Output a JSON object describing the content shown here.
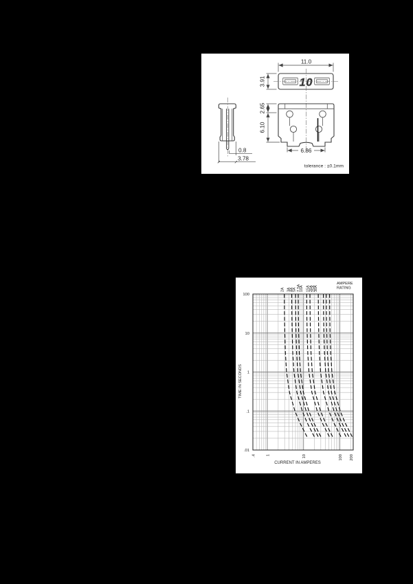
{
  "page": {
    "background": "#000000",
    "panel_background": "#ffffff"
  },
  "drawing_panel": {
    "marking": "10",
    "dim_width_top": "11.0",
    "dim_height_top": "3.91",
    "dim_upper_height": "2.65",
    "dim_lower_height": "6.10",
    "dim_terminal_span": "6.86",
    "dim_blade_thickness": "0.8",
    "dim_side_width": "3.78",
    "tolerance_note": "tolerance : ±0.1mm"
  },
  "chart_data": {
    "type": "line",
    "title": "",
    "xlabel": "CURRENT IN AMPERES",
    "ylabel": "TIME IN SECONDS",
    "legend_title_lines": [
      "AMPERE",
      "RATING"
    ],
    "x_scale": "log",
    "y_scale": "log",
    "xlim": [
      0.4,
      235
    ],
    "ylim": [
      0.01,
      100
    ],
    "grid": true,
    "colors": {
      "grid_minor": "#ababab",
      "grid_major": "#7d7d7d",
      "frame": "#1d1d1d",
      "curve": "#0c0c0c"
    },
    "x_ticks": [
      {
        "v": 0.4,
        "label": ".4"
      },
      {
        "v": 1,
        "label": "1"
      },
      {
        "v": 10,
        "label": "10"
      },
      {
        "v": 100,
        "label": "100"
      },
      {
        "v": 200,
        "label": "200"
      }
    ],
    "y_ticks": [
      {
        "v": 100,
        "label": "100"
      },
      {
        "v": 10,
        "label": "10"
      },
      {
        "v": 1,
        "label": "1"
      },
      {
        "v": 0.1,
        "label": ".1"
      },
      {
        "v": 0.01,
        "label": ".01"
      }
    ],
    "times_seconds": [
      100,
      30,
      10,
      3,
      1,
      0.3,
      0.1,
      0.05,
      0.02
    ],
    "series": [
      {
        "label": "2A",
        "rating": 2,
        "label_current": 2.5,
        "currents": [
          2.95,
          2.98,
          3.04,
          3.16,
          3.4,
          4.1,
          5.78,
          7.9,
          13.1
        ]
      },
      {
        "label": "3A",
        "rating": 3,
        "label_current": 3.7,
        "currents": [
          4.71,
          4.76,
          4.86,
          5.05,
          5.44,
          6.56,
          9.23,
          12.6,
          20.9
        ]
      },
      {
        "label": "4A",
        "rating": 4,
        "label_current": 4.4,
        "currents": [
          6.01,
          6.08,
          6.2,
          6.45,
          6.94,
          8.37,
          11.8,
          16.1,
          26.7
        ]
      },
      {
        "label": "5A",
        "rating": 5,
        "label_current": 5.3,
        "currents": [
          7.13,
          7.2,
          7.35,
          7.64,
          8.23,
          9.92,
          14.0,
          19.1,
          31.6
        ]
      },
      {
        "label": "7.5A",
        "rating": 7.5,
        "label_current": 7.0,
        "currents": [
          12.2,
          12.3,
          12.6,
          13.1,
          14.1,
          17.0,
          23.9,
          32.8,
          54.2
        ]
      },
      {
        "label": "10A",
        "rating": 10,
        "label_current": 8.3,
        "currents": [
          15.0,
          15.2,
          15.5,
          16.1,
          17.4,
          20.9,
          29.5,
          40.3,
          66.7
        ]
      },
      {
        "label": "15A",
        "rating": 15,
        "label_current": 12.6,
        "currents": [
          25.5,
          25.8,
          26.3,
          27.4,
          29.5,
          35.5,
          50.0,
          68.4,
          113
        ]
      },
      {
        "label": "20A",
        "rating": 20,
        "label_current": 15.3,
        "currents": [
          35.3,
          35.7,
          36.4,
          37.9,
          40.8,
          49.1,
          69.2,
          94.6,
          157
        ]
      },
      {
        "label": "25A",
        "rating": 25,
        "label_current": 17.9,
        "currents": [
          42.5,
          42.9,
          43.8,
          45.6,
          49.1,
          59.1,
          83.2,
          114,
          188
        ]
      },
      {
        "label": "30A",
        "rating": 30,
        "label_current": 20.8,
        "currents": [
          52.4,
          52.9,
          54.0,
          56.2,
          60.5,
          72.9,
          103,
          140,
          232
        ]
      }
    ]
  }
}
